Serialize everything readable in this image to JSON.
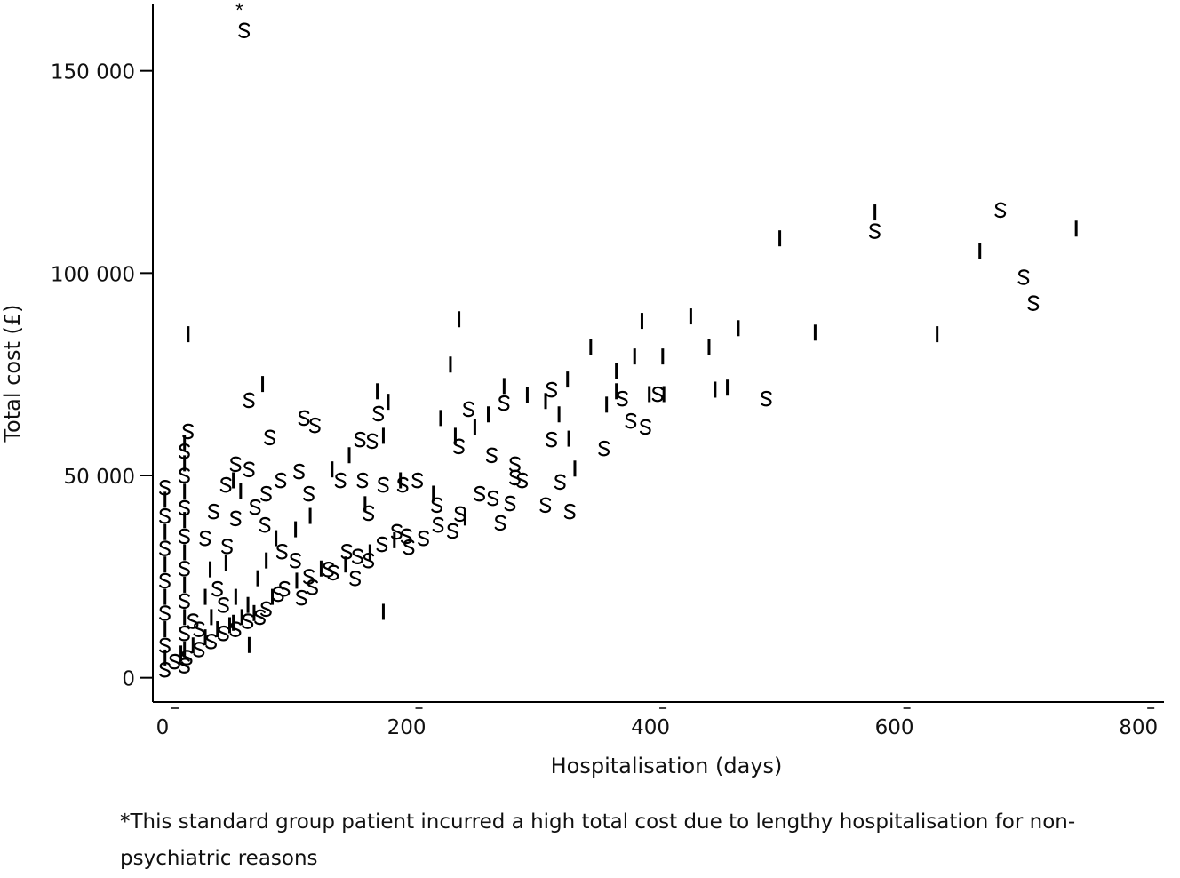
{
  "chart_data": {
    "type": "scatter",
    "title": "",
    "xlabel": "Hospitalisation (days)",
    "ylabel": "Total cost (£)",
    "xlim": [
      -8,
      821
    ],
    "ylim": [
      -6000,
      167500
    ],
    "xticks": [
      0,
      200,
      400,
      600,
      800
    ],
    "xtick_labels": [
      "0",
      "200",
      "400",
      "600",
      "800"
    ],
    "yticks": [
      0,
      50000,
      100000,
      150000
    ],
    "ytick_labels": [
      "0",
      "50 000",
      "100 000",
      "150 000"
    ],
    "grid": false,
    "legend": "none (markers: S = standard group, I = intensive group)",
    "annotation": {
      "marker": "*",
      "x": 63,
      "y": 166000
    },
    "footnote": "*This standard group patient incurred a high total cost due to lengthy hospitalisation for non-psychiatric reasons",
    "series": [
      {
        "name": "S",
        "points": [
          [
            67,
            160000
          ],
          [
            584,
            110400
          ],
          [
            687,
            115600
          ],
          [
            706,
            99000
          ],
          [
            714,
            92600
          ],
          [
            495,
            69000
          ],
          [
            406,
            70100
          ],
          [
            377,
            69000
          ],
          [
            384,
            63500
          ],
          [
            396,
            62000
          ],
          [
            319,
            71200
          ],
          [
            280,
            67900
          ],
          [
            251,
            66400
          ],
          [
            243,
            57200
          ],
          [
            270,
            55000
          ],
          [
            289,
            52800
          ],
          [
            289,
            49500
          ],
          [
            295,
            48800
          ],
          [
            285,
            43100
          ],
          [
            334,
            41100
          ],
          [
            314,
            42700
          ],
          [
            326,
            48400
          ],
          [
            319,
            58900
          ],
          [
            362,
            56700
          ],
          [
            71,
            68600
          ],
          [
            177,
            65300
          ],
          [
            116,
            64200
          ],
          [
            125,
            62400
          ],
          [
            88,
            59400
          ],
          [
            162,
            58900
          ],
          [
            172,
            58500
          ],
          [
            21,
            60900
          ],
          [
            60,
            52800
          ],
          [
            71,
            51500
          ],
          [
            112,
            51000
          ],
          [
            97,
            48800
          ],
          [
            120,
            45500
          ],
          [
            146,
            48800
          ],
          [
            164,
            48800
          ],
          [
            181,
            47700
          ],
          [
            197,
            47700
          ],
          [
            209,
            48800
          ],
          [
            225,
            42700
          ],
          [
            169,
            40700
          ],
          [
            84,
            37800
          ],
          [
            53,
            32500
          ],
          [
            52,
            47700
          ],
          [
            42,
            41100
          ],
          [
            35,
            34500
          ],
          [
            60,
            39400
          ],
          [
            76,
            42200
          ],
          [
            85,
            45500
          ],
          [
            192,
            36100
          ],
          [
            202,
            32300
          ],
          [
            214,
            34500
          ],
          [
            238,
            36300
          ],
          [
            226,
            37800
          ],
          [
            244,
            40500
          ],
          [
            260,
            45500
          ],
          [
            271,
            44400
          ],
          [
            277,
            38300
          ],
          [
            98,
            31200
          ],
          [
            109,
            29000
          ],
          [
            136,
            26800
          ],
          [
            151,
            31200
          ],
          [
            158,
            24600
          ],
          [
            169,
            29000
          ],
          [
            123,
            22400
          ],
          [
            95,
            20700
          ],
          [
            114,
            19800
          ],
          [
            2,
            2000
          ],
          [
            2,
            8000
          ],
          [
            2,
            16000
          ],
          [
            2,
            24000
          ],
          [
            2,
            32000
          ],
          [
            2,
            40000
          ],
          [
            2,
            47000
          ],
          [
            18,
            3000
          ],
          [
            18,
            11000
          ],
          [
            18,
            19000
          ],
          [
            18,
            27000
          ],
          [
            18,
            35000
          ],
          [
            18,
            42000
          ],
          [
            18,
            50000
          ],
          [
            18,
            56000
          ],
          [
            10,
            4000
          ],
          [
            20,
            5000
          ],
          [
            30,
            7000
          ],
          [
            40,
            9000
          ],
          [
            50,
            11000
          ],
          [
            60,
            12000
          ],
          [
            70,
            14000
          ],
          [
            80,
            15000
          ],
          [
            30,
            12000
          ],
          [
            50,
            18000
          ],
          [
            25,
            14000
          ],
          [
            45,
            22000
          ],
          [
            85,
            17000
          ],
          [
            100,
            22000
          ],
          [
            120,
            25000
          ],
          [
            140,
            26000
          ],
          [
            160,
            30000
          ],
          [
            180,
            33000
          ],
          [
            200,
            35000
          ]
        ]
      },
      {
        "name": "I",
        "points": [
          [
            584,
            115000
          ],
          [
            749,
            111000
          ],
          [
            670,
            105500
          ],
          [
            506,
            108600
          ],
          [
            635,
            84900
          ],
          [
            535,
            85300
          ],
          [
            472,
            86400
          ],
          [
            433,
            89300
          ],
          [
            393,
            88200
          ],
          [
            243,
            88600
          ],
          [
            21,
            84900
          ],
          [
            351,
            81800
          ],
          [
            448,
            81800
          ],
          [
            410,
            79400
          ],
          [
            387,
            79400
          ],
          [
            236,
            77400
          ],
          [
            332,
            73700
          ],
          [
            372,
            75900
          ],
          [
            453,
            71200
          ],
          [
            463,
            71700
          ],
          [
            411,
            70100
          ],
          [
            399,
            70100
          ],
          [
            372,
            70800
          ],
          [
            364,
            67500
          ],
          [
            299,
            69900
          ],
          [
            314,
            68400
          ],
          [
            325,
            65100
          ],
          [
            280,
            72100
          ],
          [
            267,
            65100
          ],
          [
            228,
            64200
          ],
          [
            240,
            59800
          ],
          [
            256,
            62000
          ],
          [
            338,
            51700
          ],
          [
            333,
            59100
          ],
          [
            82,
            72600
          ],
          [
            176,
            70800
          ],
          [
            185,
            68200
          ],
          [
            58,
            48800
          ],
          [
            64,
            46200
          ],
          [
            139,
            51500
          ],
          [
            153,
            55000
          ],
          [
            166,
            42900
          ],
          [
            181,
            59800
          ],
          [
            195,
            48800
          ],
          [
            222,
            45500
          ],
          [
            248,
            39600
          ],
          [
            121,
            40000
          ],
          [
            109,
            36700
          ],
          [
            93,
            34500
          ],
          [
            85,
            29000
          ],
          [
            181,
            16300
          ],
          [
            39,
            26800
          ],
          [
            52,
            28400
          ],
          [
            78,
            24600
          ],
          [
            71,
            8100
          ],
          [
            58,
            13600
          ],
          [
            2,
            5000
          ],
          [
            2,
            12000
          ],
          [
            2,
            20000
          ],
          [
            2,
            28000
          ],
          [
            2,
            36000
          ],
          [
            2,
            44000
          ],
          [
            18,
            7000
          ],
          [
            18,
            15000
          ],
          [
            18,
            23000
          ],
          [
            18,
            31000
          ],
          [
            18,
            39000
          ],
          [
            18,
            46000
          ],
          [
            18,
            53000
          ],
          [
            18,
            58000
          ],
          [
            15,
            6000
          ],
          [
            25,
            8000
          ],
          [
            35,
            10000
          ],
          [
            45,
            12000
          ],
          [
            55,
            13000
          ],
          [
            65,
            15000
          ],
          [
            75,
            16000
          ],
          [
            40,
            15000
          ],
          [
            60,
            20000
          ],
          [
            35,
            20000
          ],
          [
            70,
            18000
          ],
          [
            90,
            20000
          ],
          [
            110,
            24000
          ],
          [
            130,
            27000
          ],
          [
            150,
            28000
          ],
          [
            170,
            31000
          ],
          [
            190,
            34000
          ]
        ]
      }
    ]
  }
}
